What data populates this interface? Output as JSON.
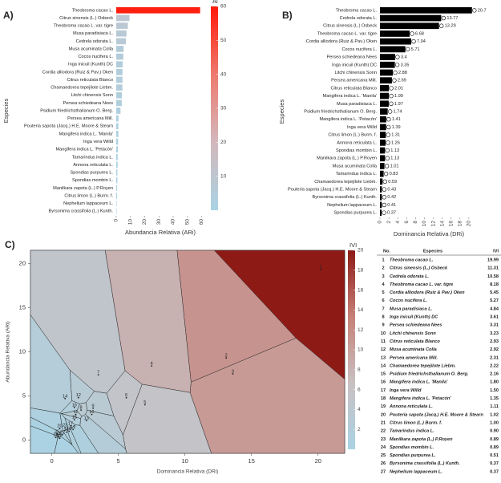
{
  "chart_data": [
    {
      "type": "hbar",
      "panel_label": "A)",
      "xlabel": "Abundancia Relativa (ARi)",
      "ylabel": "Especies",
      "categories": [
        "Theobroma cacao L.",
        "Citrus sinensis (L.) Osbeck",
        "Theobroma cacao L. var. tigre",
        "Musa paradisiaca L.",
        "Cedrela odorata L.",
        "Musa acuminata Colla",
        "Cocos nucifera L.",
        "Inga inicuil (Kunth) DC",
        "Cordia alliodora (Ruiz & Pav.) Oken",
        "Citrus reticulata Blanco",
        "Chamaedorea tepejilote Liebm.",
        "Litchi chinensis Sonn",
        "Persea schiedeana Nees",
        "Psidium friedrichsthalianum O. Berg.",
        "Persea americana Mill.",
        "Pouteria sapota (Jacq.) H.E. Moore & Stearn",
        "Mangifera indica L. 'Manila'",
        "Inga vera Willd",
        "Mangifera indica L. 'Petacón'",
        "Tamarindus indica L.",
        "Annona reticulata L.",
        "Spondias purpurea L.",
        "Spondias mombin L.",
        "Manilkara zapota (L.) P.Royen",
        "Citrus limon (L.) Burm. f.",
        "Nephelium lappaceum L.",
        "Byrsonima crassifolia (L.) Kunth."
      ],
      "values": [
        59,
        9.3,
        8.2,
        7.2,
        6.8,
        5.2,
        5.0,
        4.5,
        4.4,
        4.4,
        4.3,
        4.0,
        3.9,
        3.0,
        1.6,
        1.5,
        1.5,
        1.3,
        1.2,
        1.0,
        1.0,
        0.8,
        0.8,
        0.6,
        0.6,
        0.3,
        0.3
      ],
      "xlim": [
        0,
        62
      ],
      "xticks": [
        0,
        10,
        20,
        30,
        40,
        50,
        60
      ],
      "colorbar": {
        "title": "Ai",
        "lim": [
          0,
          60
        ],
        "ticks": [
          10,
          20,
          30,
          40,
          50,
          60
        ],
        "colors": [
          "#a9d3e4",
          "#d3b8bc",
          "#ee7a6e",
          "#ff1a0a"
        ]
      }
    },
    {
      "type": "hbar",
      "panel_label": "B)",
      "xlabel": "Dominancia Relativa (DRi)",
      "ylabel": "Especies",
      "color": "#000000",
      "categories": [
        "Theobroma cacao L.",
        "Cedrela odorata L.",
        "Citrus sinensis (L.) Osbeck",
        "Theobroma cacao L. var. tigre",
        "Cordia alliodora (Ruiz & Pav.) Oken",
        "Cocos nucifera L.",
        "Persea schiedeana Nees",
        "Inga inicuil (Kunth) DC",
        "Litchi chinensis Sonn",
        "Persea americana Mill.",
        "Citrus reticulata Blanco",
        "Mangifera indica L. 'Manila'",
        "Musa paradisiaca L.",
        "Psidium friedrichsthalianum O. Berg.",
        "Mangifera indica L. 'Petacón'",
        "Inga vera Willd",
        "Citrus limon (L.) Burm. f.",
        "Annona reticulata L.",
        "Spondias mombin L.",
        "Manilkara zapota (L.) P.Royen",
        "Musa acuminata Colla",
        "Tamarindus indica L.",
        "Chamaedorea tepejilote Liebm.",
        "Pouteria sapota (Jacq.) H.E. Moore & Stearn",
        "Byrsonima crassifolia (L.) Kunth.",
        "Nephelium lappaceum L.",
        "Spondias purpurea L."
      ],
      "values": [
        20.7,
        13.77,
        13.29,
        6.68,
        7.04,
        5.71,
        3.4,
        3.35,
        2.88,
        2.69,
        2.01,
        1.99,
        1.97,
        1.74,
        1.41,
        1.39,
        1.31,
        1.26,
        1.13,
        1.13,
        1.01,
        0.83,
        0.59,
        0.43,
        0.42,
        0.41,
        0.37
      ],
      "xlim": [
        0,
        22
      ],
      "xticks": [
        0,
        2,
        4,
        6,
        8,
        10,
        12,
        14,
        16,
        18,
        20
      ]
    },
    {
      "type": "voronoi",
      "panel_label": "C)",
      "xlabel": "Dominancia Relativa (DRi)",
      "ylabel": "Abundancia Relativa (ARi)",
      "point_labels": [
        1,
        2,
        3,
        4,
        5,
        6,
        7,
        8,
        9,
        10,
        11,
        12,
        13,
        14,
        15,
        16,
        17,
        18,
        19,
        20,
        21,
        22,
        23,
        24,
        25,
        26,
        27
      ],
      "x": [
        20.2,
        13.1,
        13.6,
        7.5,
        7.0,
        5.6,
        3.5,
        2.2,
        3.1,
        3.0,
        1.8,
        2.0,
        2.6,
        1.0,
        1.7,
        1.7,
        1.4,
        1.3,
        1.6,
        0.6,
        1.1,
        0.8,
        1.0,
        0.5,
        0.4,
        0.3,
        0.6
      ],
      "values": [
        19.3,
        9.3,
        7.5,
        8.4,
        4.0,
        4.8,
        7.4,
        3.4,
        3.6,
        2.9,
        2.9,
        4.8,
        2.2,
        4.7,
        2.3,
        3.7,
        1.6,
        1.0,
        1.2,
        1.3,
        0.9,
        0.6,
        1.4,
        0.4,
        0.7,
        0.3,
        0.2
      ],
      "ivi": [
        19.99,
        11.31,
        10.58,
        8.18,
        5.45,
        5.27,
        4.84,
        3.61,
        3.31,
        3.23,
        2.93,
        2.92,
        2.31,
        2.22,
        2.16,
        1.8,
        1.5,
        1.35,
        1.11,
        1.02,
        1.0,
        0.9,
        0.89,
        0.89,
        0.51,
        0.37,
        0.37
      ],
      "xlim": [
        -1.6,
        22
      ],
      "xticks": [
        0,
        5,
        10,
        15,
        20
      ],
      "ylim": [
        -1.5,
        21.5
      ],
      "yticks": [
        0,
        5,
        10,
        15,
        20
      ],
      "colorbar": {
        "title": "IVI",
        "lim": [
          0,
          20
        ],
        "ticks": [
          2,
          4,
          6,
          8,
          10,
          12,
          14,
          16,
          18,
          20
        ],
        "colors": [
          "#a9d3e4",
          "#c9c0c2",
          "#c68077",
          "#8e1a16"
        ]
      }
    }
  ],
  "table": {
    "headers": [
      "No.",
      "Especies",
      "IVI"
    ],
    "rows": [
      [
        1,
        "Theobroma cacao L.",
        "19.99"
      ],
      [
        2,
        "Citrus sinensis (L.) Osbeck",
        "11.31"
      ],
      [
        3,
        "Cedrela odorata L.",
        "10.58"
      ],
      [
        4,
        "Theobroma cacao L. var. tigre",
        "8.18"
      ],
      [
        5,
        "Cordia alliodora (Ruiz & Pav.) Oken",
        "5.45"
      ],
      [
        6,
        "Cocos nucifera L.",
        "5.27"
      ],
      [
        7,
        "Musa paradisiaca L.",
        "4.84"
      ],
      [
        8,
        "Inga inicuil (Kunth) DC",
        "3.61"
      ],
      [
        9,
        "Persea schiedeana Nees",
        "3.31"
      ],
      [
        10,
        "Litchi chinensis Sonn",
        "3.23"
      ],
      [
        11,
        "Citrus reticulata Blanco",
        "2.93"
      ],
      [
        12,
        "Musa acuminata Colla",
        "2.92"
      ],
      [
        13,
        "Persea americana Mill.",
        "2.31"
      ],
      [
        14,
        "Chamaedorea tepejilote Liebm.",
        "2.22"
      ],
      [
        15,
        "Psidium friedrichsthalianum O. Berg.",
        "2.16"
      ],
      [
        16,
        "Mangifera indica L. 'Manila'",
        "1.80"
      ],
      [
        17,
        "Inga vera Willd",
        "1.50"
      ],
      [
        18,
        "Mangifera indica L. 'Petacón'",
        "1.35"
      ],
      [
        19,
        "Annona reticulata L.",
        "1.11"
      ],
      [
        20,
        "Pouteria sapota (Jacq.) H.E. Moore & Stearn",
        "1.02"
      ],
      [
        21,
        "Citrus limon (L.) Burm. f.",
        "1.00"
      ],
      [
        22,
        "Tamarindus indica L.",
        "0.90"
      ],
      [
        23,
        "Manilkara zapota (L.) P.Royen",
        "0.89"
      ],
      [
        24,
        "Spondias mombin L.",
        "0.89"
      ],
      [
        25,
        "Spondias purpurea L.",
        "0.51"
      ],
      [
        26,
        "Byrsonima crassifolia (L.) Kunth.",
        "0.37"
      ],
      [
        27,
        "Nephelium lappaceum L.",
        "0.37"
      ]
    ]
  }
}
